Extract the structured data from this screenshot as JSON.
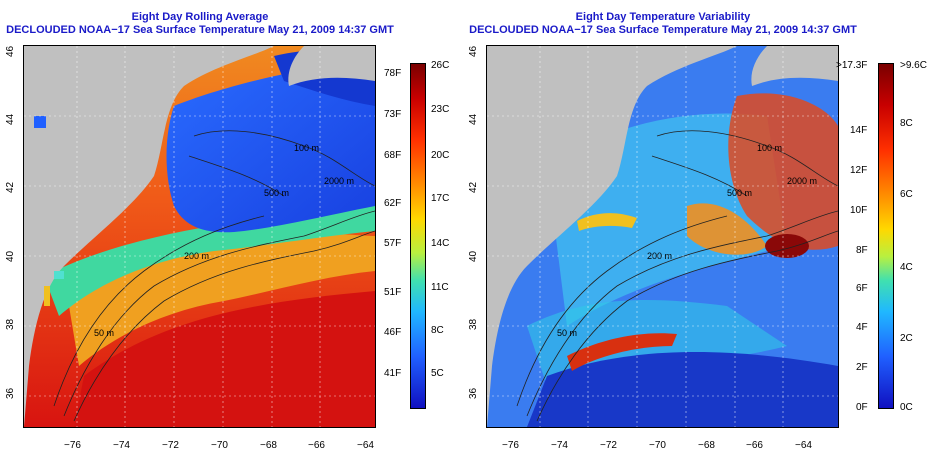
{
  "left_panel": {
    "title_line1": "Eight Day Rolling Average",
    "title_line2": "DECLOUDED NOAA−17 Sea Surface Temperature May 21, 2009 14:37 GMT",
    "x_ticks": [
      "−76",
      "−74",
      "−72",
      "−70",
      "−68",
      "−66",
      "−64"
    ],
    "y_ticks": [
      "46",
      "44",
      "42",
      "40",
      "38",
      "36"
    ],
    "contour_labels": [
      "200 m",
      "2000 m",
      "100 m",
      "500 m",
      "50 m"
    ],
    "colorbar_f": [
      "78F",
      "73F",
      "68F",
      "62F",
      "57F",
      "51F",
      "46F",
      "41F"
    ],
    "colorbar_c": [
      "26C",
      "23C",
      "20C",
      "17C",
      "14C",
      "11C",
      "8C",
      "5C"
    ]
  },
  "right_panel": {
    "title_line1": "Eight Day Temperature Variability",
    "title_line2": "DECLOUDED NOAA−17 Sea Surface Temperature May 21, 2009 14:37 GMT",
    "x_ticks": [
      "−76",
      "−74",
      "−72",
      "−70",
      "−68",
      "−66",
      "−64"
    ],
    "y_ticks": [
      "46",
      "44",
      "42",
      "40",
      "38",
      "36"
    ],
    "contour_labels": [
      "200 m",
      "2000 m",
      "100 m",
      "500 m",
      "50 m"
    ],
    "colorbar_f": [
      ">17.3F",
      "14F",
      "12F",
      "10F",
      "8F",
      "6F",
      "4F",
      "2F",
      "0F"
    ],
    "colorbar_c": [
      ">9.6C",
      "8C",
      "6C",
      "4C",
      "2C",
      "0C"
    ]
  },
  "colors": {
    "land": "#c0c0c0",
    "title": "#1a1ac8",
    "warm": "#e01a10",
    "cool": "#1e5aff"
  }
}
